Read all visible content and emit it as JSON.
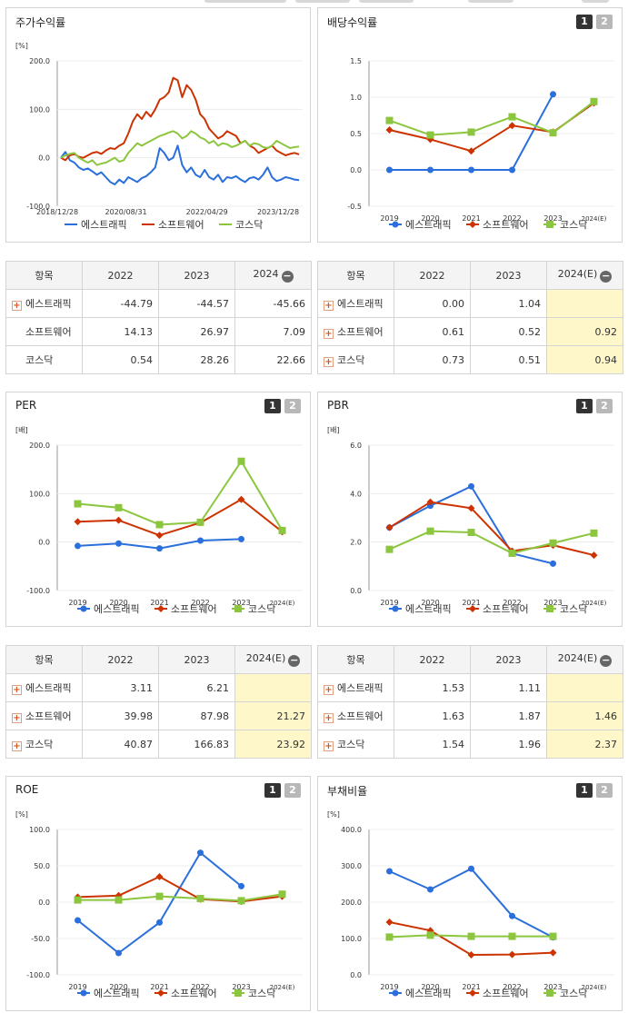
{
  "colors": {
    "s1": "#2a6fdb",
    "s2": "#cc3300",
    "s3": "#8cc63f"
  },
  "legend": [
    "에스트래픽",
    "소프트웨어",
    "코스닥"
  ],
  "tableHeader": "항목",
  "pager": [
    "1",
    "2"
  ],
  "minusIcon": "minus-circle-icon",
  "plusIcon": "plus-box-icon",
  "chart_data": [
    {
      "id": "stock",
      "type": "line",
      "title": "주가수익률",
      "unit": "[%]",
      "ylim": [
        -100,
        200
      ],
      "yticks": [
        "200.0",
        "100.0",
        "0.0",
        "-100.0"
      ],
      "xticks": [
        "2018/12/28",
        "2020/08/31",
        "2022/04/29",
        "2023/12/28"
      ],
      "xtickAt": [
        0,
        0.28,
        0.61,
        0.9
      ],
      "series": [
        {
          "name": "에스트래픽",
          "values": [
            0,
            12,
            -5,
            -10,
            -20,
            -25,
            -22,
            -28,
            -35,
            -30,
            -40,
            -50,
            -55,
            -45,
            -52,
            -40,
            -45,
            -50,
            -42,
            -38,
            -30,
            -20,
            20,
            10,
            -5,
            0,
            25,
            -15,
            -30,
            -20,
            -35,
            -40,
            -25,
            -40,
            -45,
            -35,
            -50,
            -40,
            -42,
            -38,
            -45,
            -50,
            -42,
            -40,
            -45,
            -35,
            -20,
            -40,
            -48,
            -45,
            -40,
            -42,
            -45,
            -46
          ]
        },
        {
          "name": "소프트웨어",
          "values": [
            0,
            -5,
            5,
            8,
            2,
            0,
            5,
            10,
            12,
            8,
            15,
            20,
            18,
            25,
            30,
            50,
            75,
            90,
            80,
            95,
            85,
            100,
            120,
            125,
            135,
            165,
            160,
            125,
            150,
            140,
            120,
            90,
            80,
            60,
            50,
            40,
            45,
            55,
            50,
            45,
            30,
            35,
            25,
            20,
            10,
            15,
            20,
            25,
            15,
            10,
            5,
            8,
            10,
            7
          ]
        },
        {
          "name": "코스닥",
          "values": [
            0,
            5,
            8,
            10,
            0,
            -5,
            -10,
            -5,
            -15,
            -12,
            -10,
            -5,
            0,
            -8,
            -5,
            10,
            20,
            30,
            25,
            30,
            35,
            40,
            45,
            48,
            52,
            55,
            50,
            40,
            45,
            55,
            50,
            42,
            38,
            30,
            35,
            25,
            30,
            28,
            22,
            25,
            30,
            35,
            25,
            30,
            28,
            22,
            20,
            25,
            35,
            30,
            25,
            20,
            22,
            23
          ]
        }
      ]
    },
    {
      "id": "dividend",
      "type": "line",
      "title": "배당수익률",
      "unit": "",
      "ylim": [
        -0.5,
        1.5
      ],
      "yticks": [
        "1.5",
        "1.0",
        "0.5",
        "0.0",
        "-0.5"
      ],
      "categories": [
        "2019",
        "2020",
        "2021",
        "2022",
        "2023",
        "2024(E)"
      ],
      "series": [
        {
          "name": "에스트래픽",
          "values": [
            0.0,
            0.0,
            0.0,
            0.0,
            1.04,
            null
          ]
        },
        {
          "name": "소프트웨어",
          "values": [
            0.55,
            0.42,
            0.26,
            0.61,
            0.52,
            0.92
          ]
        },
        {
          "name": "코스닥",
          "values": [
            0.68,
            0.48,
            0.52,
            0.73,
            0.51,
            0.94
          ]
        }
      ]
    },
    {
      "id": "per",
      "type": "line",
      "title": "PER",
      "unit": "[배]",
      "ylim": [
        -100,
        200
      ],
      "yticks": [
        "200.0",
        "100.0",
        "0.0",
        "-100.0"
      ],
      "categories": [
        "2019",
        "2020",
        "2021",
        "2022",
        "2023",
        "2024(E)"
      ],
      "series": [
        {
          "name": "에스트래픽",
          "values": [
            -8,
            -3,
            -13,
            3.11,
            6.21,
            null
          ]
        },
        {
          "name": "소프트웨어",
          "values": [
            42,
            45,
            14,
            39.98,
            87.98,
            21.27
          ]
        },
        {
          "name": "코스닥",
          "values": [
            79,
            71,
            36,
            40.87,
            166.83,
            23.92
          ]
        }
      ]
    },
    {
      "id": "pbr",
      "type": "line",
      "title": "PBR",
      "unit": "[배]",
      "ylim": [
        0,
        6
      ],
      "yticks": [
        "6.0",
        "4.0",
        "2.0",
        "0.0"
      ],
      "categories": [
        "2019",
        "2020",
        "2021",
        "2022",
        "2023",
        "2024(E)"
      ],
      "series": [
        {
          "name": "에스트래픽",
          "values": [
            2.6,
            3.5,
            4.3,
            1.53,
            1.11,
            null
          ]
        },
        {
          "name": "소프트웨어",
          "values": [
            2.6,
            3.65,
            3.4,
            1.63,
            1.87,
            1.46
          ]
        },
        {
          "name": "코스닥",
          "values": [
            1.7,
            2.45,
            2.4,
            1.54,
            1.96,
            2.37
          ]
        }
      ]
    },
    {
      "id": "roe",
      "type": "line",
      "title": "ROE",
      "unit": "[%]",
      "ylim": [
        -100,
        100
      ],
      "yticks": [
        "100.0",
        "50.0",
        "0.0",
        "-50.0",
        "-100.0"
      ],
      "categories": [
        "2019",
        "2020",
        "2021",
        "2022",
        "2023",
        "2024(E)"
      ],
      "series": [
        {
          "name": "에스트래픽",
          "values": [
            -25,
            -70,
            -28,
            68,
            22,
            null
          ]
        },
        {
          "name": "소프트웨어",
          "values": [
            7,
            9,
            35,
            4,
            1,
            8
          ]
        },
        {
          "name": "코스닥",
          "values": [
            3,
            3,
            8,
            5,
            2,
            11
          ]
        }
      ]
    },
    {
      "id": "debt",
      "type": "line",
      "title": "부채비율",
      "unit": "[%]",
      "ylim": [
        0,
        400
      ],
      "yticks": [
        "400.0",
        "300.0",
        "200.0",
        "100.0",
        "0.0"
      ],
      "categories": [
        "2019",
        "2020",
        "2021",
        "2022",
        "2023",
        "2024(E)"
      ],
      "series": [
        {
          "name": "에스트래픽",
          "values": [
            285,
            235,
            292,
            162,
            103,
            null
          ]
        },
        {
          "name": "소프트웨어",
          "values": [
            145,
            122,
            55,
            56,
            61,
            null
          ]
        },
        {
          "name": "코스닥",
          "values": [
            104,
            109,
            106,
            106,
            106,
            null
          ]
        }
      ]
    }
  ],
  "tables": {
    "stock": {
      "cols": [
        "2022",
        "2023",
        "2024"
      ],
      "rows": [
        {
          "name": "에스트래픽",
          "plus": true,
          "v": [
            "-44.79",
            "-44.57",
            "-45.66"
          ]
        },
        {
          "name": "소프트웨어",
          "plus": false,
          "v": [
            "14.13",
            "26.97",
            "7.09"
          ]
        },
        {
          "name": "코스닥",
          "plus": false,
          "v": [
            "0.54",
            "28.26",
            "22.66"
          ]
        }
      ]
    },
    "dividend": {
      "cols": [
        "2022",
        "2023",
        "2024(E)"
      ],
      "rows": [
        {
          "name": "에스트래픽",
          "plus": true,
          "v": [
            "0.00",
            "1.04",
            ""
          ]
        },
        {
          "name": "소프트웨어",
          "plus": true,
          "v": [
            "0.61",
            "0.52",
            "0.92"
          ]
        },
        {
          "name": "코스닥",
          "plus": true,
          "v": [
            "0.73",
            "0.51",
            "0.94"
          ]
        }
      ]
    },
    "per": {
      "cols": [
        "2022",
        "2023",
        "2024(E)"
      ],
      "rows": [
        {
          "name": "에스트래픽",
          "plus": true,
          "v": [
            "3.11",
            "6.21",
            ""
          ]
        },
        {
          "name": "소프트웨어",
          "plus": true,
          "v": [
            "39.98",
            "87.98",
            "21.27"
          ]
        },
        {
          "name": "코스닥",
          "plus": true,
          "v": [
            "40.87",
            "166.83",
            "23.92"
          ]
        }
      ]
    },
    "pbr": {
      "cols": [
        "2022",
        "2023",
        "2024(E)"
      ],
      "rows": [
        {
          "name": "에스트래픽",
          "plus": true,
          "v": [
            "1.53",
            "1.11",
            ""
          ]
        },
        {
          "name": "소프트웨어",
          "plus": true,
          "v": [
            "1.63",
            "1.87",
            "1.46"
          ]
        },
        {
          "name": "코스닥",
          "plus": true,
          "v": [
            "1.54",
            "1.96",
            "2.37"
          ]
        }
      ]
    }
  }
}
